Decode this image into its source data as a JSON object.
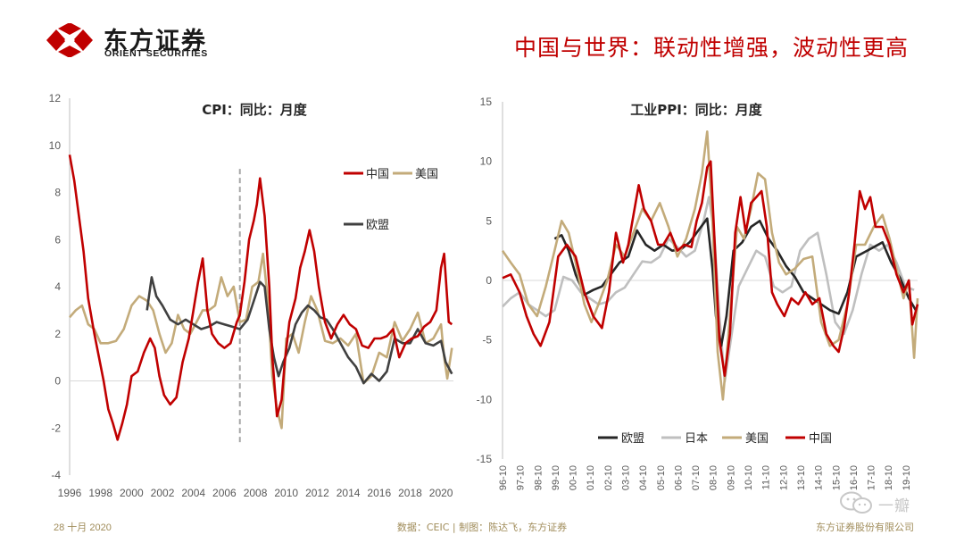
{
  "header": {
    "logo_cn": "东方证券",
    "logo_en": "ORIENT SECURITIES",
    "headline": "中国与世界：联动性增强，波动性更高"
  },
  "colors": {
    "red": "#c00000",
    "gold": "#c3ab7a",
    "dark": "#262626",
    "gray": "#bfbfbf",
    "dash": "#a6a6a6"
  },
  "footer": {
    "date": "28 十月 2020",
    "source": "数据：CEIC | 制图：陈达飞，东方证券",
    "company": "东方证券股份有限公司"
  },
  "watermark": {
    "text": "一瓣",
    "icon": "wechat-icon"
  },
  "chart_data": [
    {
      "type": "line",
      "title": "CPI：同比：月度",
      "xlabel": "",
      "ylabel": "",
      "xlim": [
        1996,
        2020.8
      ],
      "ylim": [
        -4,
        12
      ],
      "x_ticks": [
        1996,
        1998,
        2000,
        2002,
        2004,
        2006,
        2008,
        2010,
        2012,
        2014,
        2016,
        2018,
        2020
      ],
      "y_ticks": [
        -4,
        -2,
        0,
        2,
        4,
        6,
        8,
        10,
        12
      ],
      "reference_line": {
        "x": 2007,
        "style": "dashed"
      },
      "legend": [
        "中国",
        "美国",
        "欧盟"
      ],
      "series": [
        {
          "name": "中国",
          "color": "#c00000",
          "x": [
            1996,
            1996.3,
            1996.6,
            1996.9,
            1997.2,
            1997.6,
            1997.9,
            1998.2,
            1998.5,
            1998.8,
            1999.1,
            1999.4,
            1999.7,
            2000.0,
            2000.4,
            2000.8,
            2001.2,
            2001.5,
            2001.8,
            2002.1,
            2002.5,
            2002.9,
            2003.3,
            2003.7,
            2004.0,
            2004.3,
            2004.6,
            2004.9,
            2005.2,
            2005.6,
            2006.0,
            2006.4,
            2006.8,
            2007.0,
            2007.3,
            2007.6,
            2007.9,
            2008.1,
            2008.3,
            2008.6,
            2008.9,
            2009.1,
            2009.4,
            2009.7,
            2009.9,
            2010.2,
            2010.6,
            2010.9,
            2011.2,
            2011.5,
            2011.8,
            2012.1,
            2012.5,
            2012.9,
            2013.3,
            2013.7,
            2014.1,
            2014.5,
            2014.9,
            2015.3,
            2015.7,
            2016.1,
            2016.5,
            2016.9,
            2017.3,
            2017.7,
            2018.1,
            2018.5,
            2018.9,
            2019.3,
            2019.7,
            2020.0,
            2020.2,
            2020.5,
            2020.7
          ],
          "values": [
            9.6,
            8.5,
            7.0,
            5.5,
            3.5,
            2.0,
            1.0,
            0.0,
            -1.2,
            -1.8,
            -2.5,
            -1.8,
            -1.0,
            0.2,
            0.4,
            1.2,
            1.8,
            1.4,
            0.2,
            -0.6,
            -1.0,
            -0.7,
            0.8,
            1.8,
            3.0,
            4.2,
            5.2,
            3.0,
            2.0,
            1.6,
            1.4,
            1.6,
            2.5,
            2.8,
            4.2,
            6.0,
            6.8,
            7.5,
            8.6,
            7.0,
            4.0,
            1.0,
            -1.5,
            -0.8,
            0.8,
            2.5,
            3.5,
            4.8,
            5.5,
            6.4,
            5.5,
            4.0,
            2.5,
            1.8,
            2.4,
            2.8,
            2.4,
            2.2,
            1.5,
            1.4,
            1.8,
            1.8,
            1.9,
            2.2,
            1.0,
            1.6,
            1.8,
            1.9,
            2.3,
            2.5,
            3.0,
            4.8,
            5.4,
            2.5,
            2.4
          ]
        },
        {
          "name": "美国",
          "color": "#c3ab7a",
          "x": [
            1996,
            1996.4,
            1996.8,
            1997.2,
            1997.6,
            1998.0,
            1998.5,
            1999.0,
            1999.5,
            2000.0,
            2000.5,
            2001.0,
            2001.4,
            2001.8,
            2002.2,
            2002.6,
            2003.0,
            2003.4,
            2003.8,
            2004.2,
            2004.6,
            2005.0,
            2005.4,
            2005.8,
            2006.2,
            2006.6,
            2007.0,
            2007.4,
            2007.8,
            2008.2,
            2008.5,
            2008.8,
            2009.1,
            2009.4,
            2009.7,
            2010.0,
            2010.4,
            2010.8,
            2011.2,
            2011.6,
            2012.0,
            2012.5,
            2013.0,
            2013.5,
            2014.0,
            2014.5,
            2015.0,
            2015.5,
            2016.0,
            2016.5,
            2017.0,
            2017.5,
            2018.0,
            2018.5,
            2019.0,
            2019.5,
            2020.0,
            2020.2,
            2020.4,
            2020.7
          ],
          "values": [
            2.7,
            3.0,
            3.2,
            2.4,
            2.2,
            1.6,
            1.6,
            1.7,
            2.2,
            3.2,
            3.6,
            3.4,
            3.0,
            2.0,
            1.2,
            1.6,
            2.8,
            2.2,
            2.0,
            2.5,
            3.0,
            3.0,
            3.2,
            4.4,
            3.6,
            4.0,
            2.5,
            2.6,
            4.0,
            4.2,
            5.4,
            3.5,
            0.2,
            -1.2,
            -2.0,
            1.8,
            2.0,
            1.2,
            2.5,
            3.6,
            3.0,
            1.7,
            1.6,
            1.8,
            1.5,
            2.0,
            -0.1,
            0.2,
            1.2,
            1.0,
            2.5,
            1.7,
            2.2,
            2.9,
            1.6,
            1.8,
            2.4,
            1.0,
            0.1,
            1.4
          ]
        },
        {
          "name": "欧盟",
          "color": "#404040",
          "x": [
            2001.0,
            2001.3,
            2001.6,
            2002.0,
            2002.5,
            2003.0,
            2003.5,
            2004.0,
            2004.5,
            2005.0,
            2005.5,
            2006.0,
            2006.5,
            2007.0,
            2007.5,
            2008.0,
            2008.3,
            2008.6,
            2008.9,
            2009.2,
            2009.5,
            2009.8,
            2010.2,
            2010.6,
            2011.0,
            2011.4,
            2011.8,
            2012.2,
            2012.6,
            2013.0,
            2013.5,
            2014.0,
            2014.5,
            2015.0,
            2015.5,
            2016.0,
            2016.5,
            2017.0,
            2017.5,
            2018.0,
            2018.5,
            2019.0,
            2019.5,
            2020.0,
            2020.3,
            2020.7
          ],
          "values": [
            3.0,
            4.4,
            3.6,
            3.2,
            2.6,
            2.4,
            2.6,
            2.4,
            2.2,
            2.3,
            2.5,
            2.4,
            2.3,
            2.2,
            2.6,
            3.6,
            4.2,
            4.0,
            2.2,
            1.0,
            0.2,
            0.8,
            1.4,
            2.4,
            2.9,
            3.2,
            3.0,
            2.7,
            2.6,
            2.2,
            1.6,
            1.0,
            0.6,
            -0.1,
            0.3,
            0.0,
            0.4,
            1.8,
            1.6,
            1.6,
            2.2,
            1.6,
            1.5,
            1.7,
            0.8,
            0.3
          ]
        }
      ]
    },
    {
      "type": "line",
      "title": "工业PPI：同比：月度",
      "xlabel": "",
      "ylabel": "",
      "xlim": [
        1996.83,
        2020.5
      ],
      "ylim": [
        -15,
        15
      ],
      "x_ticks": [
        "96-10",
        "97-10",
        "98-10",
        "99-10",
        "00-10",
        "01-10",
        "02-10",
        "03-10",
        "04-10",
        "05-10",
        "06-10",
        "07-10",
        "08-10",
        "09-10",
        "10-10",
        "11-10",
        "12-10",
        "13-10",
        "14-10",
        "15-10",
        "16-10",
        "17-10",
        "18-10",
        "19-10"
      ],
      "y_ticks": [
        -15,
        -10,
        -5,
        0,
        5,
        10,
        15
      ],
      "legend": [
        "欧盟",
        "日本",
        "美国",
        "中国"
      ],
      "series": [
        {
          "name": "欧盟",
          "color": "#262626",
          "x": [
            1999.8,
            2000.2,
            2000.6,
            2001.0,
            2001.5,
            2002.0,
            2002.5,
            2003.0,
            2003.5,
            2004.0,
            2004.5,
            2005.0,
            2005.5,
            2006.0,
            2006.5,
            2007.0,
            2007.5,
            2008.0,
            2008.5,
            2008.8,
            2009.0,
            2009.3,
            2009.6,
            2010.0,
            2010.5,
            2011.0,
            2011.5,
            2012.0,
            2012.5,
            2013.0,
            2013.5,
            2014.0,
            2014.5,
            2015.0,
            2015.5,
            2016.0,
            2016.5,
            2017.0,
            2017.5,
            2018.0,
            2018.5,
            2019.0,
            2019.5,
            2020.0,
            2020.4
          ],
          "values": [
            3.5,
            3.8,
            2.5,
            0.5,
            -1.2,
            -0.8,
            -0.5,
            0.5,
            1.5,
            2.0,
            4.2,
            3.0,
            2.5,
            3.0,
            2.5,
            2.6,
            3.2,
            4.2,
            5.2,
            1.0,
            -3.0,
            -5.5,
            -3.0,
            2.5,
            3.2,
            4.5,
            5.0,
            3.5,
            2.5,
            1.2,
            0.3,
            -1.0,
            -1.5,
            -2.0,
            -2.5,
            -2.8,
            -1.0,
            2.0,
            2.4,
            2.8,
            3.2,
            1.5,
            0.2,
            -1.5,
            -2.5
          ]
        },
        {
          "name": "日本",
          "color": "#bfbfbf",
          "x": [
            1996.83,
            1997.3,
            1997.8,
            1998.3,
            1998.8,
            1999.3,
            1999.8,
            2000.3,
            2000.8,
            2001.3,
            2001.8,
            2002.3,
            2002.8,
            2003.3,
            2003.8,
            2004.3,
            2004.8,
            2005.3,
            2005.8,
            2006.3,
            2006.8,
            2007.3,
            2007.8,
            2008.3,
            2008.6,
            2008.9,
            2009.2,
            2009.5,
            2009.8,
            2010.3,
            2010.8,
            2011.3,
            2011.8,
            2012.3,
            2012.8,
            2013.3,
            2013.8,
            2014.3,
            2014.8,
            2015.3,
            2015.8,
            2016.3,
            2016.8,
            2017.3,
            2017.8,
            2018.3,
            2018.8,
            2019.3,
            2019.8,
            2020.3
          ],
          "values": [
            -2.2,
            -1.5,
            -1.0,
            -2.0,
            -2.5,
            -3.0,
            -2.5,
            0.3,
            0.0,
            -1.0,
            -1.5,
            -2.0,
            -1.8,
            -1.0,
            -0.6,
            0.5,
            1.6,
            1.5,
            2.0,
            3.5,
            2.8,
            2.0,
            2.5,
            5.0,
            7.0,
            4.0,
            -3.0,
            -8.5,
            -5.5,
            -0.5,
            1.0,
            2.5,
            2.0,
            -0.5,
            -1.0,
            -0.5,
            2.5,
            3.5,
            4.0,
            0.5,
            -3.5,
            -4.5,
            -2.5,
            0.5,
            3.0,
            2.5,
            3.0,
            1.5,
            -0.5,
            -0.8
          ]
        },
        {
          "name": "美国",
          "color": "#c3ab7a",
          "x": [
            1996.83,
            1997.3,
            1997.8,
            1998.3,
            1998.8,
            1999.3,
            1999.8,
            2000.2,
            2000.6,
            2001.0,
            2001.5,
            2001.9,
            2002.3,
            2002.8,
            2003.3,
            2003.8,
            2004.3,
            2004.8,
            2005.3,
            2005.8,
            2006.3,
            2006.8,
            2007.3,
            2007.8,
            2008.2,
            2008.5,
            2008.8,
            2009.1,
            2009.4,
            2009.8,
            2010.2,
            2010.6,
            2011.0,
            2011.4,
            2011.8,
            2012.2,
            2012.6,
            2013.0,
            2013.5,
            2014.0,
            2014.5,
            2015.0,
            2015.5,
            2016.0,
            2016.5,
            2017.0,
            2017.5,
            2018.0,
            2018.5,
            2018.9,
            2019.3,
            2019.7,
            2020.0,
            2020.3,
            2020.5
          ],
          "values": [
            2.5,
            1.5,
            0.5,
            -2.0,
            -3.0,
            -0.5,
            2.5,
            5.0,
            4.0,
            1.5,
            -2.0,
            -3.5,
            -2.0,
            0.0,
            3.0,
            2.0,
            4.0,
            6.0,
            5.0,
            6.5,
            4.5,
            2.0,
            3.5,
            6.0,
            9.0,
            12.5,
            5.0,
            -6.0,
            -10.0,
            -3.0,
            4.5,
            3.5,
            6.0,
            9.0,
            8.5,
            4.0,
            1.5,
            0.5,
            1.0,
            1.8,
            2.0,
            -3.5,
            -5.5,
            -5.0,
            -2.0,
            3.0,
            3.0,
            4.5,
            5.5,
            3.5,
            1.0,
            -1.5,
            0.0,
            -6.5,
            -1.5
          ]
        },
        {
          "name": "中国",
          "color": "#c00000",
          "x": [
            1996.83,
            1997.3,
            1997.8,
            1998.2,
            1998.6,
            1999.0,
            1999.5,
            2000.0,
            2000.5,
            2001.0,
            2001.5,
            2002.0,
            2002.5,
            2002.9,
            2003.3,
            2003.7,
            2004.0,
            2004.3,
            2004.6,
            2004.9,
            2005.3,
            2005.7,
            2006.0,
            2006.4,
            2006.8,
            2007.2,
            2007.6,
            2007.9,
            2008.2,
            2008.5,
            2008.7,
            2008.9,
            2009.2,
            2009.5,
            2009.8,
            2010.1,
            2010.4,
            2010.7,
            2011.0,
            2011.3,
            2011.6,
            2011.9,
            2012.2,
            2012.5,
            2012.9,
            2013.3,
            2013.7,
            2014.1,
            2014.5,
            2014.9,
            2015.3,
            2015.7,
            2016.0,
            2016.3,
            2016.6,
            2016.9,
            2017.2,
            2017.5,
            2017.8,
            2018.1,
            2018.5,
            2018.9,
            2019.3,
            2019.7,
            2020.0,
            2020.2,
            2020.5
          ],
          "values": [
            0.2,
            0.5,
            -1.0,
            -3.0,
            -4.5,
            -5.5,
            -3.5,
            2.0,
            3.0,
            2.0,
            -1.0,
            -3.0,
            -4.0,
            -1.0,
            4.0,
            1.5,
            3.0,
            5.5,
            8.0,
            6.0,
            5.0,
            3.0,
            3.0,
            4.0,
            2.5,
            3.0,
            2.8,
            5.0,
            6.5,
            9.5,
            10.0,
            4.0,
            -5.0,
            -8.0,
            -4.5,
            4.0,
            7.0,
            4.0,
            6.5,
            7.0,
            7.5,
            4.5,
            -1.0,
            -2.0,
            -3.0,
            -1.5,
            -2.0,
            -1.0,
            -2.0,
            -1.5,
            -4.5,
            -5.5,
            -6.0,
            -4.0,
            -1.0,
            3.0,
            7.5,
            6.0,
            7.0,
            4.5,
            4.5,
            3.0,
            0.5,
            -1.0,
            0.0,
            -3.7,
            -2.0
          ]
        }
      ]
    }
  ]
}
